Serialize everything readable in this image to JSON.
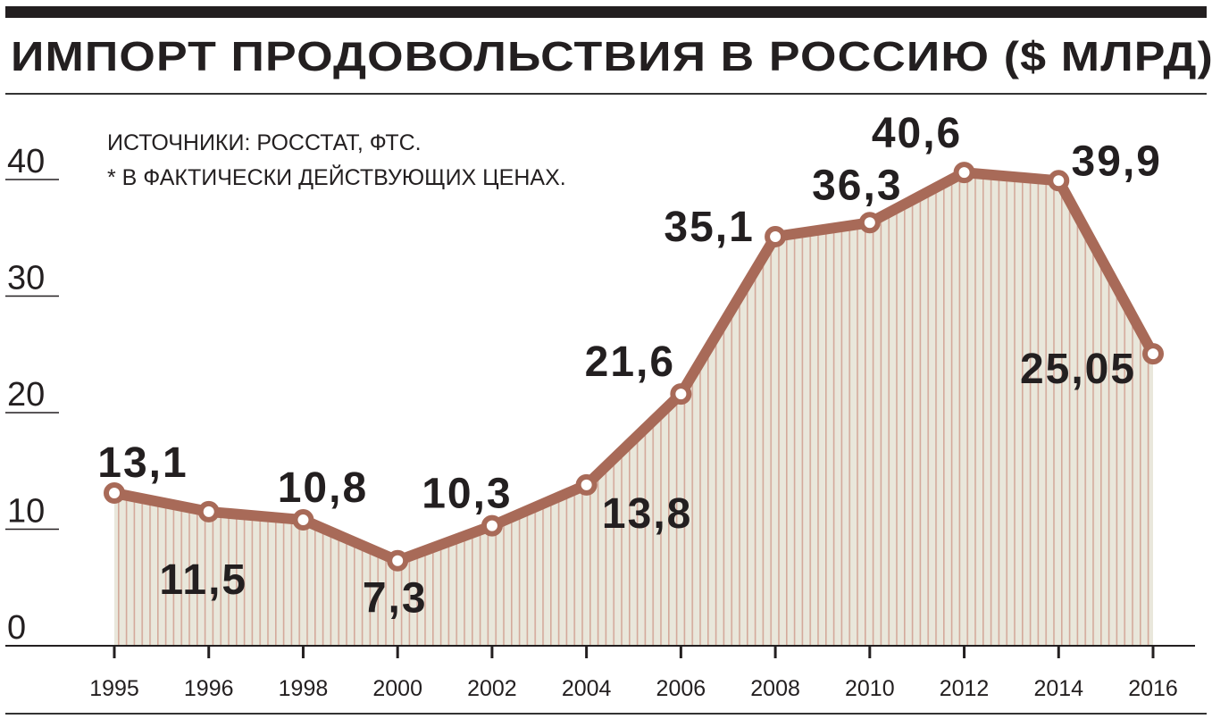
{
  "chart_data": {
    "type": "line",
    "title": "ИМПОРТ ПРОДОВОЛЬСТВИЯ В РОССИЮ ($ МЛРД)*",
    "notes": [
      "ИСТОЧНИКИ: РОССТАТ, ФТС.",
      "* В ФАКТИЧЕСКИ ДЕЙСТВУЮЩИХ ЦЕНАХ."
    ],
    "categories": [
      "1995",
      "1996",
      "1998",
      "2000",
      "2002",
      "2004",
      "2006",
      "2008",
      "2010",
      "2012",
      "2014",
      "2016"
    ],
    "values": [
      13.1,
      11.5,
      10.8,
      7.3,
      10.3,
      13.8,
      21.6,
      35.1,
      36.3,
      40.6,
      39.9,
      25.05
    ],
    "data_labels": [
      "13,1",
      "11,5",
      "10,8",
      "7,3",
      "10,3",
      "13,8",
      "21,6",
      "35,1",
      "36,3",
      "40,6",
      "39,9",
      "25,05"
    ],
    "yticks": [
      "0",
      "10",
      "20",
      "30",
      "40"
    ],
    "ylim": [
      0,
      40
    ],
    "xlabel": "",
    "ylabel": "",
    "grid": false,
    "colors": {
      "line": "#a86a58",
      "fill": "#e9e7db",
      "stripe": "#d4a99b",
      "text": "#231f20"
    }
  }
}
